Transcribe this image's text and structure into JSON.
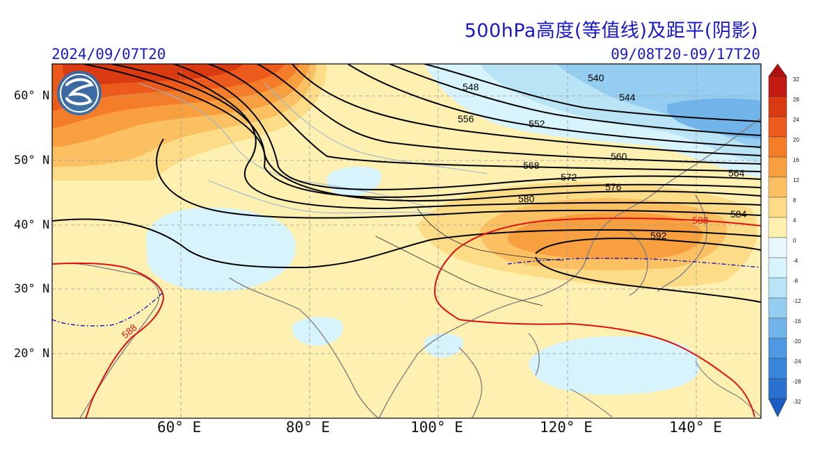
{
  "title": "500hPa高度(等值线)及距平(阴影)",
  "init_time": "2024/09/07T20",
  "valid_period": "09/08T20-09/17T20",
  "lat_labels": [
    "60° N",
    "50° N",
    "40° N",
    "30° N",
    "20° N"
  ],
  "lon_labels": [
    "60° E",
    "80° E",
    "100° E",
    "120° E",
    "140° E"
  ],
  "colorbar_ticks": [
    "32",
    "28",
    "24",
    "20",
    "16",
    "12",
    "8",
    "4",
    "0",
    "-4",
    "-8",
    "-12",
    "-16",
    "-20",
    "-24",
    "-28",
    "-32"
  ],
  "contour_labels": [
    "540",
    "544",
    "548",
    "552",
    "556",
    "560",
    "564",
    "568",
    "572",
    "576",
    "580",
    "584",
    "588",
    "592",
    "588"
  ],
  "colors": {
    "title": "#1818c8",
    "ridge_588": "#e01010",
    "anomaly_zero": "#1010c0",
    "contour": "#000000"
  },
  "logo": "cma-logo"
}
